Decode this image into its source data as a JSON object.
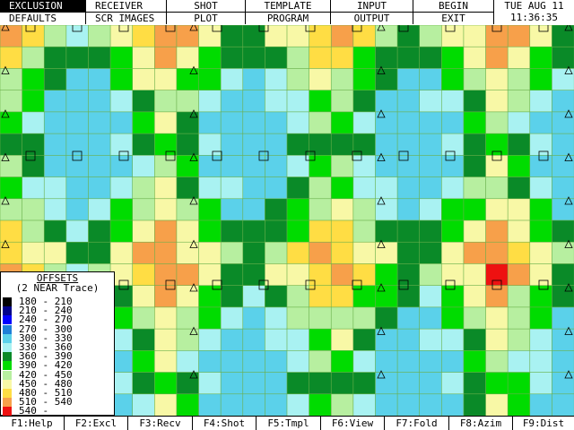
{
  "menu": {
    "row1": [
      "EXCLUSION",
      "RECEIVER",
      "SHOT",
      "TEMPLATE",
      "INPUT",
      "BEGIN"
    ],
    "row2": [
      "DEFAULTS",
      "SCR IMAGES",
      "PLOT",
      "PROGRAM",
      "OUTPUT",
      "EXIT"
    ],
    "selected": "EXCLUSION"
  },
  "clock": {
    "date": "TUE AUG 11",
    "time": "11:36:35"
  },
  "legend": {
    "title": "OFFSETS",
    "subtitle": "(2 NEAR Trace)",
    "ranges": [
      {
        "label": "180 - 210",
        "color": "#000000"
      },
      {
        "label": "210 - 240",
        "color": "#00008b"
      },
      {
        "label": "240 - 270",
        "color": "#0000ff"
      },
      {
        "label": "270 - 300",
        "color": "#1e7fd8"
      },
      {
        "label": "300 - 330",
        "color": "#5bd1ea"
      },
      {
        "label": "330 - 360",
        "color": "#a9f2f2"
      },
      {
        "label": "360 - 390",
        "color": "#0a8a28"
      },
      {
        "label": "390 - 420",
        "color": "#00dc00"
      },
      {
        "label": "420 - 450",
        "color": "#b7efa0"
      },
      {
        "label": "450 - 480",
        "color": "#f8f8a6"
      },
      {
        "label": "480 - 510",
        "color": "#ffdd44"
      },
      {
        "label": "510 - 540",
        "color": "#f7a04a"
      },
      {
        "label": "540 -",
        "color": "#ee1111"
      }
    ]
  },
  "function_keys": [
    "F1:Help",
    "F2:Excl",
    "F3:Recv",
    "F4:Shot",
    "F5:Tmpl",
    "F6:View",
    "F7:Fold",
    "F8:Azim",
    "F9:Dist"
  ]
}
